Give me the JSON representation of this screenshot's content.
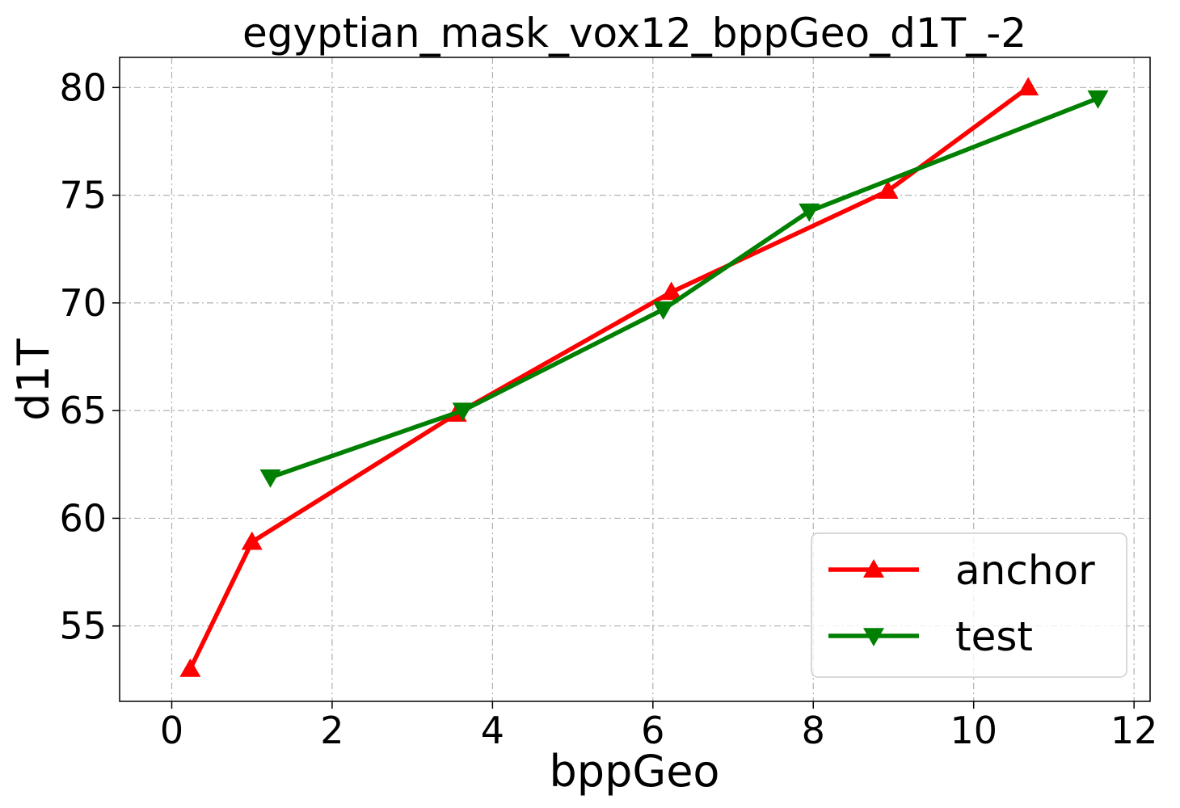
{
  "chart_data": {
    "type": "line",
    "title": "egyptian_mask_vox12_bppGeo_d1T_-2",
    "xlabel": "bppGeo",
    "ylabel": "d1T",
    "xlim": [
      -0.65,
      12.2
    ],
    "ylim": [
      51.5,
      81.4
    ],
    "xticks": [
      0,
      2,
      4,
      6,
      8,
      10,
      12
    ],
    "yticks": [
      55,
      60,
      65,
      70,
      75,
      80
    ],
    "grid": true,
    "legend_position": "lower-right",
    "series": [
      {
        "name": "anchor",
        "color": "#ff0000",
        "marker": "triangle-up",
        "x": [
          0.23,
          1.0,
          3.55,
          6.23,
          8.93,
          10.68
        ],
        "y": [
          53.0,
          58.9,
          64.85,
          70.5,
          75.2,
          80.0
        ]
      },
      {
        "name": "test",
        "color": "#008000",
        "marker": "triangle-down",
        "x": [
          1.23,
          3.63,
          6.13,
          7.95,
          11.55
        ],
        "y": [
          61.9,
          65.0,
          69.7,
          74.25,
          79.5
        ]
      }
    ]
  }
}
